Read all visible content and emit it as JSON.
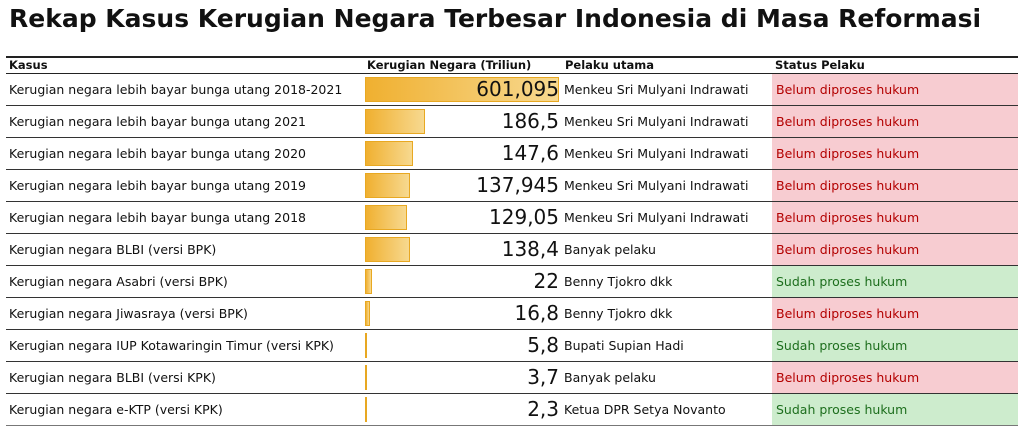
{
  "title": "Rekap Kasus Kerugian Negara Terbesar Indonesia di Masa Reformasi",
  "headers": {
    "kasus": "Kasus",
    "kerugian": "Kerugian Negara (Triliun)",
    "pelaku": "Pelaku utama",
    "status": "Status Pelaku"
  },
  "colors": {
    "bar": "#f0b030",
    "status_bad_bg": "#f7ccd1",
    "status_bad_text": "#b30000",
    "status_good_bg": "#cdeccd",
    "status_good_text": "#1d6e1d"
  },
  "rows": [
    {
      "kasus": "Kerugian negara lebih bayar bunga utang 2018-2021",
      "nilai": "601,095",
      "value": 601.095,
      "pelaku": "Menkeu Sri Mulyani Indrawati",
      "status": "Belum diproses hukum",
      "status_type": "bad"
    },
    {
      "kasus": "Kerugian negara lebih bayar bunga utang 2021",
      "nilai": "186,5",
      "value": 186.5,
      "pelaku": "Menkeu Sri Mulyani Indrawati",
      "status": "Belum diproses hukum",
      "status_type": "bad"
    },
    {
      "kasus": "Kerugian negara lebih bayar bunga utang 2020",
      "nilai": "147,6",
      "value": 147.6,
      "pelaku": "Menkeu Sri Mulyani Indrawati",
      "status": "Belum diproses hukum",
      "status_type": "bad"
    },
    {
      "kasus": "Kerugian negara lebih bayar bunga utang 2019",
      "nilai": "137,945",
      "value": 137.945,
      "pelaku": "Menkeu Sri Mulyani Indrawati",
      "status": "Belum diproses hukum",
      "status_type": "bad"
    },
    {
      "kasus": "Kerugian negara lebih bayar bunga utang 2018",
      "nilai": "129,05",
      "value": 129.05,
      "pelaku": "Menkeu Sri Mulyani Indrawati",
      "status": "Belum diproses hukum",
      "status_type": "bad"
    },
    {
      "kasus": "Kerugian negara BLBI (versi BPK)",
      "nilai": "138,4",
      "value": 138.4,
      "pelaku": "Banyak pelaku",
      "status": "Belum diproses hukum",
      "status_type": "bad"
    },
    {
      "kasus": "Kerugian negara Asabri (versi BPK)",
      "nilai": "22",
      "value": 22,
      "pelaku": "Benny Tjokro dkk",
      "status": "Sudah proses hukum",
      "status_type": "good"
    },
    {
      "kasus": "Kerugian negara Jiwasraya (versi BPK)",
      "nilai": "16,8",
      "value": 16.8,
      "pelaku": "Benny Tjokro dkk",
      "status": "Belum diproses hukum",
      "status_type": "bad"
    },
    {
      "kasus": "Kerugian negara IUP Kotawaringin Timur (versi KPK)",
      "nilai": "5,8",
      "value": 5.8,
      "pelaku": "Bupati Supian Hadi",
      "status": "Sudah proses hukum",
      "status_type": "good"
    },
    {
      "kasus": "Kerugian negara BLBI (versi KPK)",
      "nilai": "3,7",
      "value": 3.7,
      "pelaku": "Banyak pelaku",
      "status": "Belum diproses hukum",
      "status_type": "bad"
    },
    {
      "kasus": "Kerugian negara e-KTP (versi KPK)",
      "nilai": "2,3",
      "value": 2.3,
      "pelaku": "Ketua DPR Setya Novanto",
      "status": "Sudah proses hukum",
      "status_type": "good"
    }
  ]
}
